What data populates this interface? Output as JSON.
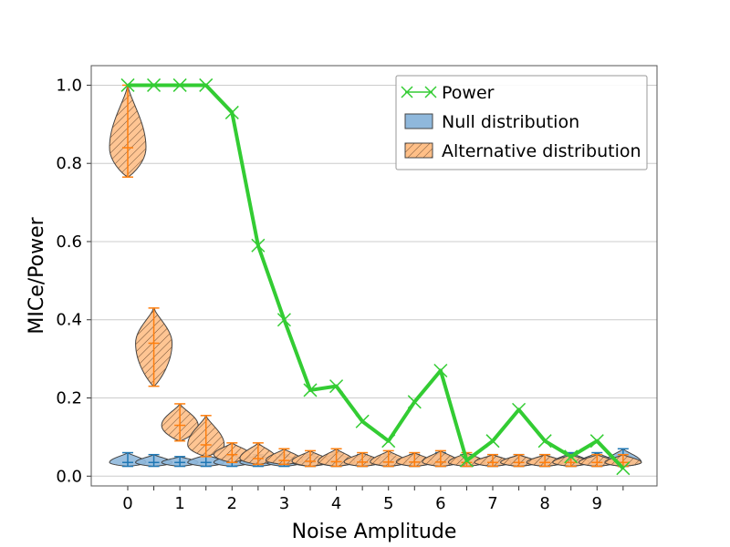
{
  "chart_data": {
    "type": "line",
    "xlabel": "Noise Amplitude",
    "ylabel": "MICe/Power",
    "xlim": [
      -0.7,
      10.15
    ],
    "ylim": [
      -0.025,
      1.05
    ],
    "xticks": [
      0,
      1,
      2,
      3,
      4,
      5,
      6,
      7,
      8,
      9
    ],
    "xtick_labels": [
      "0",
      "1",
      "2",
      "3",
      "4",
      "5",
      "6",
      "7",
      "8",
      "9"
    ],
    "yticks": [
      0.0,
      0.2,
      0.4,
      0.6,
      0.8,
      1.0
    ],
    "ytick_labels": [
      "0.0",
      "0.2",
      "0.4",
      "0.6",
      "0.8",
      "1.0"
    ],
    "grid": "horizontal",
    "legend_position": "top-right",
    "legend": [
      "Power",
      "Null distribution",
      "Alternative distribution"
    ],
    "colors": {
      "power": "#33cc33",
      "null_fill": "#8fb8dc",
      "null_edge": "#1f77b4",
      "alt_fill": "#ffbf87",
      "alt_edge": "#ff7f0e"
    },
    "noise_amplitudes": [
      0,
      0.5,
      1,
      1.5,
      2,
      2.5,
      3,
      3.5,
      4,
      4.5,
      5,
      5.5,
      6,
      6.5,
      7,
      7.5,
      8,
      8.5,
      9,
      9.5
    ],
    "power": {
      "name": "Power",
      "values": [
        1.0,
        1.0,
        1.0,
        1.0,
        0.93,
        0.59,
        0.4,
        0.22,
        0.23,
        0.14,
        0.09,
        0.19,
        0.27,
        0.04,
        0.09,
        0.17,
        0.09,
        0.05,
        0.09,
        0.02
      ]
    },
    "null_distribution": {
      "name": "Null distribution",
      "min": [
        0.025,
        0.025,
        0.025,
        0.025,
        0.025,
        0.025,
        0.025,
        0.025,
        0.025,
        0.025,
        0.025,
        0.025,
        0.025,
        0.025,
        0.025,
        0.025,
        0.025,
        0.025,
        0.025,
        0.025
      ],
      "median": [
        0.035,
        0.035,
        0.035,
        0.035,
        0.035,
        0.035,
        0.035,
        0.035,
        0.035,
        0.035,
        0.035,
        0.035,
        0.035,
        0.035,
        0.035,
        0.035,
        0.035,
        0.035,
        0.035,
        0.035
      ],
      "max": [
        0.06,
        0.055,
        0.05,
        0.055,
        0.055,
        0.055,
        0.055,
        0.055,
        0.06,
        0.055,
        0.055,
        0.055,
        0.06,
        0.055,
        0.055,
        0.055,
        0.055,
        0.06,
        0.06,
        0.07
      ]
    },
    "alternative_distribution": {
      "name": "Alternative distribution",
      "min": [
        0.765,
        0.23,
        0.09,
        0.05,
        0.035,
        0.03,
        0.03,
        0.025,
        0.025,
        0.025,
        0.025,
        0.025,
        0.025,
        0.025,
        0.025,
        0.025,
        0.025,
        0.025,
        0.025,
        0.025
      ],
      "median": [
        0.84,
        0.34,
        0.13,
        0.08,
        0.055,
        0.045,
        0.04,
        0.038,
        0.037,
        0.036,
        0.036,
        0.036,
        0.036,
        0.035,
        0.035,
        0.035,
        0.035,
        0.035,
        0.035,
        0.035
      ],
      "max": [
        1.0,
        0.43,
        0.185,
        0.155,
        0.085,
        0.085,
        0.07,
        0.065,
        0.07,
        0.06,
        0.065,
        0.06,
        0.065,
        0.06,
        0.055,
        0.055,
        0.055,
        0.055,
        0.055,
        0.055
      ]
    }
  }
}
